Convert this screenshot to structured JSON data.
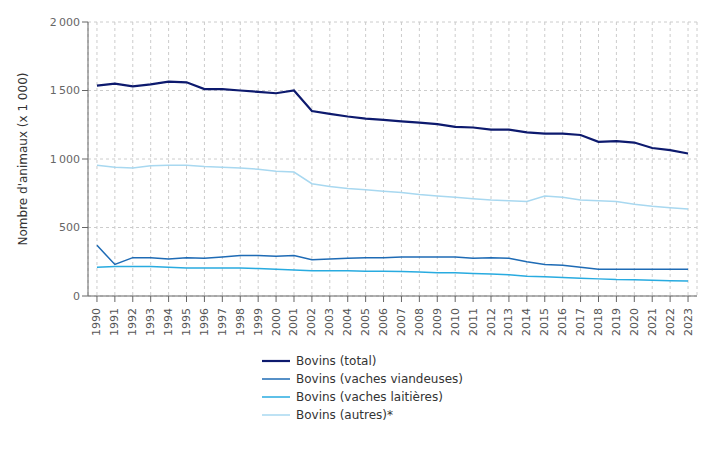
{
  "chart_data": {
    "type": "line",
    "ylabel": "Nombre d'animaux (x 1 000)",
    "x": [
      1990,
      1991,
      1992,
      1993,
      1994,
      1995,
      1996,
      1997,
      1998,
      1999,
      2000,
      2001,
      2002,
      2003,
      2004,
      2005,
      2006,
      2007,
      2008,
      2009,
      2010,
      2011,
      2012,
      2013,
      2014,
      2015,
      2016,
      2017,
      2018,
      2019,
      2020,
      2021,
      2022,
      2023
    ],
    "xlim": [
      1989.5,
      2023.5
    ],
    "xticks": [
      1990,
      1991,
      1992,
      1993,
      1994,
      1995,
      1996,
      1997,
      1998,
      1999,
      2000,
      2001,
      2002,
      2003,
      2004,
      2005,
      2006,
      2007,
      2008,
      2009,
      2010,
      2011,
      2012,
      2013,
      2014,
      2015,
      2016,
      2017,
      2018,
      2019,
      2020,
      2021,
      2022,
      2023
    ],
    "ylim": [
      0,
      2000
    ],
    "yticks": [
      0,
      500,
      {
        "value": 1000,
        "label": "1 000"
      },
      {
        "value": 1500,
        "label": "1 500"
      },
      {
        "value": 2000,
        "label": "2 000"
      }
    ],
    "grid": true,
    "legend": "bottom",
    "series": [
      {
        "name": "Bovins (autres)*",
        "color": "#a8d8f0",
        "values": [
          955,
          940,
          935,
          950,
          955,
          955,
          945,
          940,
          935,
          925,
          910,
          905,
          820,
          800,
          785,
          775,
          765,
          755,
          740,
          730,
          720,
          710,
          700,
          695,
          690,
          730,
          720,
          700,
          695,
          690,
          670,
          655,
          645,
          635
        ]
      },
      {
        "name": "Bovins (vaches laitières)",
        "color": "#28abe0",
        "values": [
          210,
          215,
          215,
          215,
          210,
          205,
          205,
          205,
          205,
          200,
          195,
          190,
          185,
          185,
          185,
          180,
          180,
          178,
          175,
          170,
          170,
          165,
          160,
          155,
          145,
          140,
          135,
          130,
          125,
          120,
          118,
          115,
          112,
          110
        ]
      },
      {
        "name": "Bovins (vaches viandeuses)",
        "color": "#1e6bb5",
        "values": [
          370,
          230,
          280,
          280,
          270,
          280,
          275,
          285,
          295,
          295,
          290,
          295,
          265,
          270,
          275,
          280,
          280,
          285,
          285,
          285,
          285,
          275,
          280,
          275,
          250,
          230,
          225,
          210,
          195,
          195,
          195,
          195,
          195,
          195
        ]
      },
      {
        "name": "Bovins (total)",
        "color": "#0d1a6e",
        "values": [
          1535,
          1550,
          1530,
          1545,
          1565,
          1560,
          1510,
          1510,
          1500,
          1490,
          1480,
          1500,
          1350,
          1330,
          1310,
          1295,
          1285,
          1275,
          1265,
          1255,
          1235,
          1230,
          1215,
          1215,
          1195,
          1185,
          1185,
          1175,
          1125,
          1130,
          1120,
          1080,
          1065,
          1040
        ]
      }
    ]
  }
}
